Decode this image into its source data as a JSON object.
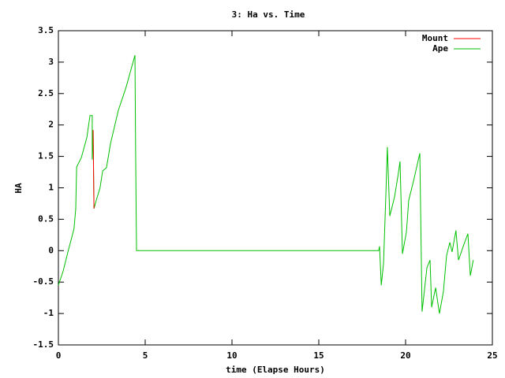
{
  "chart_data": {
    "type": "line",
    "title": "3: Ha vs. Time",
    "x_label": "time (Elapse Hours)",
    "y_label": "HA",
    "xlim": [
      0,
      25
    ],
    "xticks": [
      0,
      5,
      10,
      15,
      20,
      25
    ],
    "ylim": [
      -1.5,
      3.5
    ],
    "yticks": [
      -1.5,
      -1,
      -0.5,
      0,
      0.5,
      1,
      1.5,
      2,
      2.5,
      3,
      3.5
    ],
    "grid": false,
    "legend": "top-right",
    "series": [
      {
        "name": "Mount",
        "color": "#ff0000",
        "x": [
          2.0,
          2.05
        ],
        "values": [
          1.92,
          0.67
        ]
      },
      {
        "name": "Ape",
        "color": "#00c000",
        "x": [
          0,
          0.27,
          0.55,
          0.9,
          1.0,
          1.05,
          1.32,
          1.64,
          1.82,
          1.95,
          1.95,
          2.0,
          2.05,
          2.18,
          2.4,
          2.55,
          2.77,
          3.0,
          3.45,
          3.9,
          4.41,
          4.45,
          4.5,
          18.45,
          18.5,
          18.6,
          18.73,
          18.86,
          18.95,
          19.09,
          19.36,
          19.55,
          19.68,
          19.82,
          20.05,
          20.18,
          20.45,
          20.82,
          20.95,
          21.23,
          21.41,
          21.5,
          21.73,
          21.95,
          22.18,
          22.36,
          22.55,
          22.68,
          22.9,
          23.05,
          23.36,
          23.59,
          23.73,
          23.9
        ],
        "values": [
          -0.55,
          -0.33,
          -0.02,
          0.35,
          0.67,
          1.33,
          1.48,
          1.8,
          2.15,
          2.15,
          1.45,
          1.92,
          0.67,
          0.8,
          1.0,
          1.27,
          1.32,
          1.7,
          2.23,
          2.6,
          3.11,
          1.55,
          0,
          0,
          0.07,
          -0.55,
          -0.2,
          0.85,
          1.65,
          0.55,
          0.85,
          1.17,
          1.42,
          -0.05,
          0.3,
          0.8,
          1.1,
          1.55,
          -0.97,
          -0.27,
          -0.15,
          -0.9,
          -0.59,
          -1.0,
          -0.65,
          -0.08,
          0.13,
          -0.02,
          0.32,
          -0.15,
          0.1,
          0.27,
          -0.4,
          -0.15
        ]
      }
    ]
  }
}
